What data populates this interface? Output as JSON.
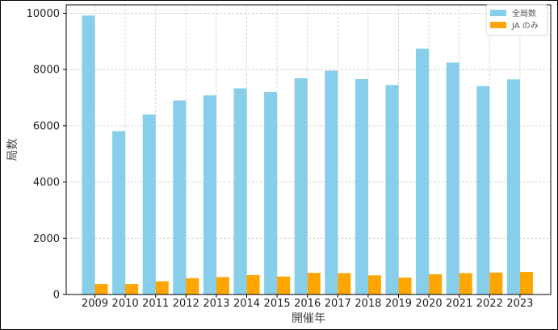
{
  "chart_data": {
    "type": "bar",
    "categories": [
      "2009",
      "2010",
      "2011",
      "2012",
      "2013",
      "2014",
      "2015",
      "2016",
      "2017",
      "2018",
      "2019",
      "2020",
      "2021",
      "2022",
      "2023"
    ],
    "series": [
      {
        "name": "全局数",
        "color": "#87CEEB",
        "values": [
          9920,
          5810,
          6400,
          6900,
          7080,
          7330,
          7200,
          7690,
          7960,
          7660,
          7450,
          8740,
          8250,
          7410,
          7650
        ]
      },
      {
        "name": "JA のみ",
        "color": "#FFA500",
        "values": [
          370,
          370,
          470,
          580,
          620,
          690,
          640,
          770,
          760,
          680,
          600,
          720,
          760,
          780,
          800
        ]
      }
    ],
    "xlabel": "開催年",
    "ylabel": "局数",
    "ylim": [
      0,
      10300
    ],
    "yticks": [
      0,
      2000,
      4000,
      6000,
      8000,
      10000
    ],
    "grid": true,
    "legend_position": "top-right"
  }
}
